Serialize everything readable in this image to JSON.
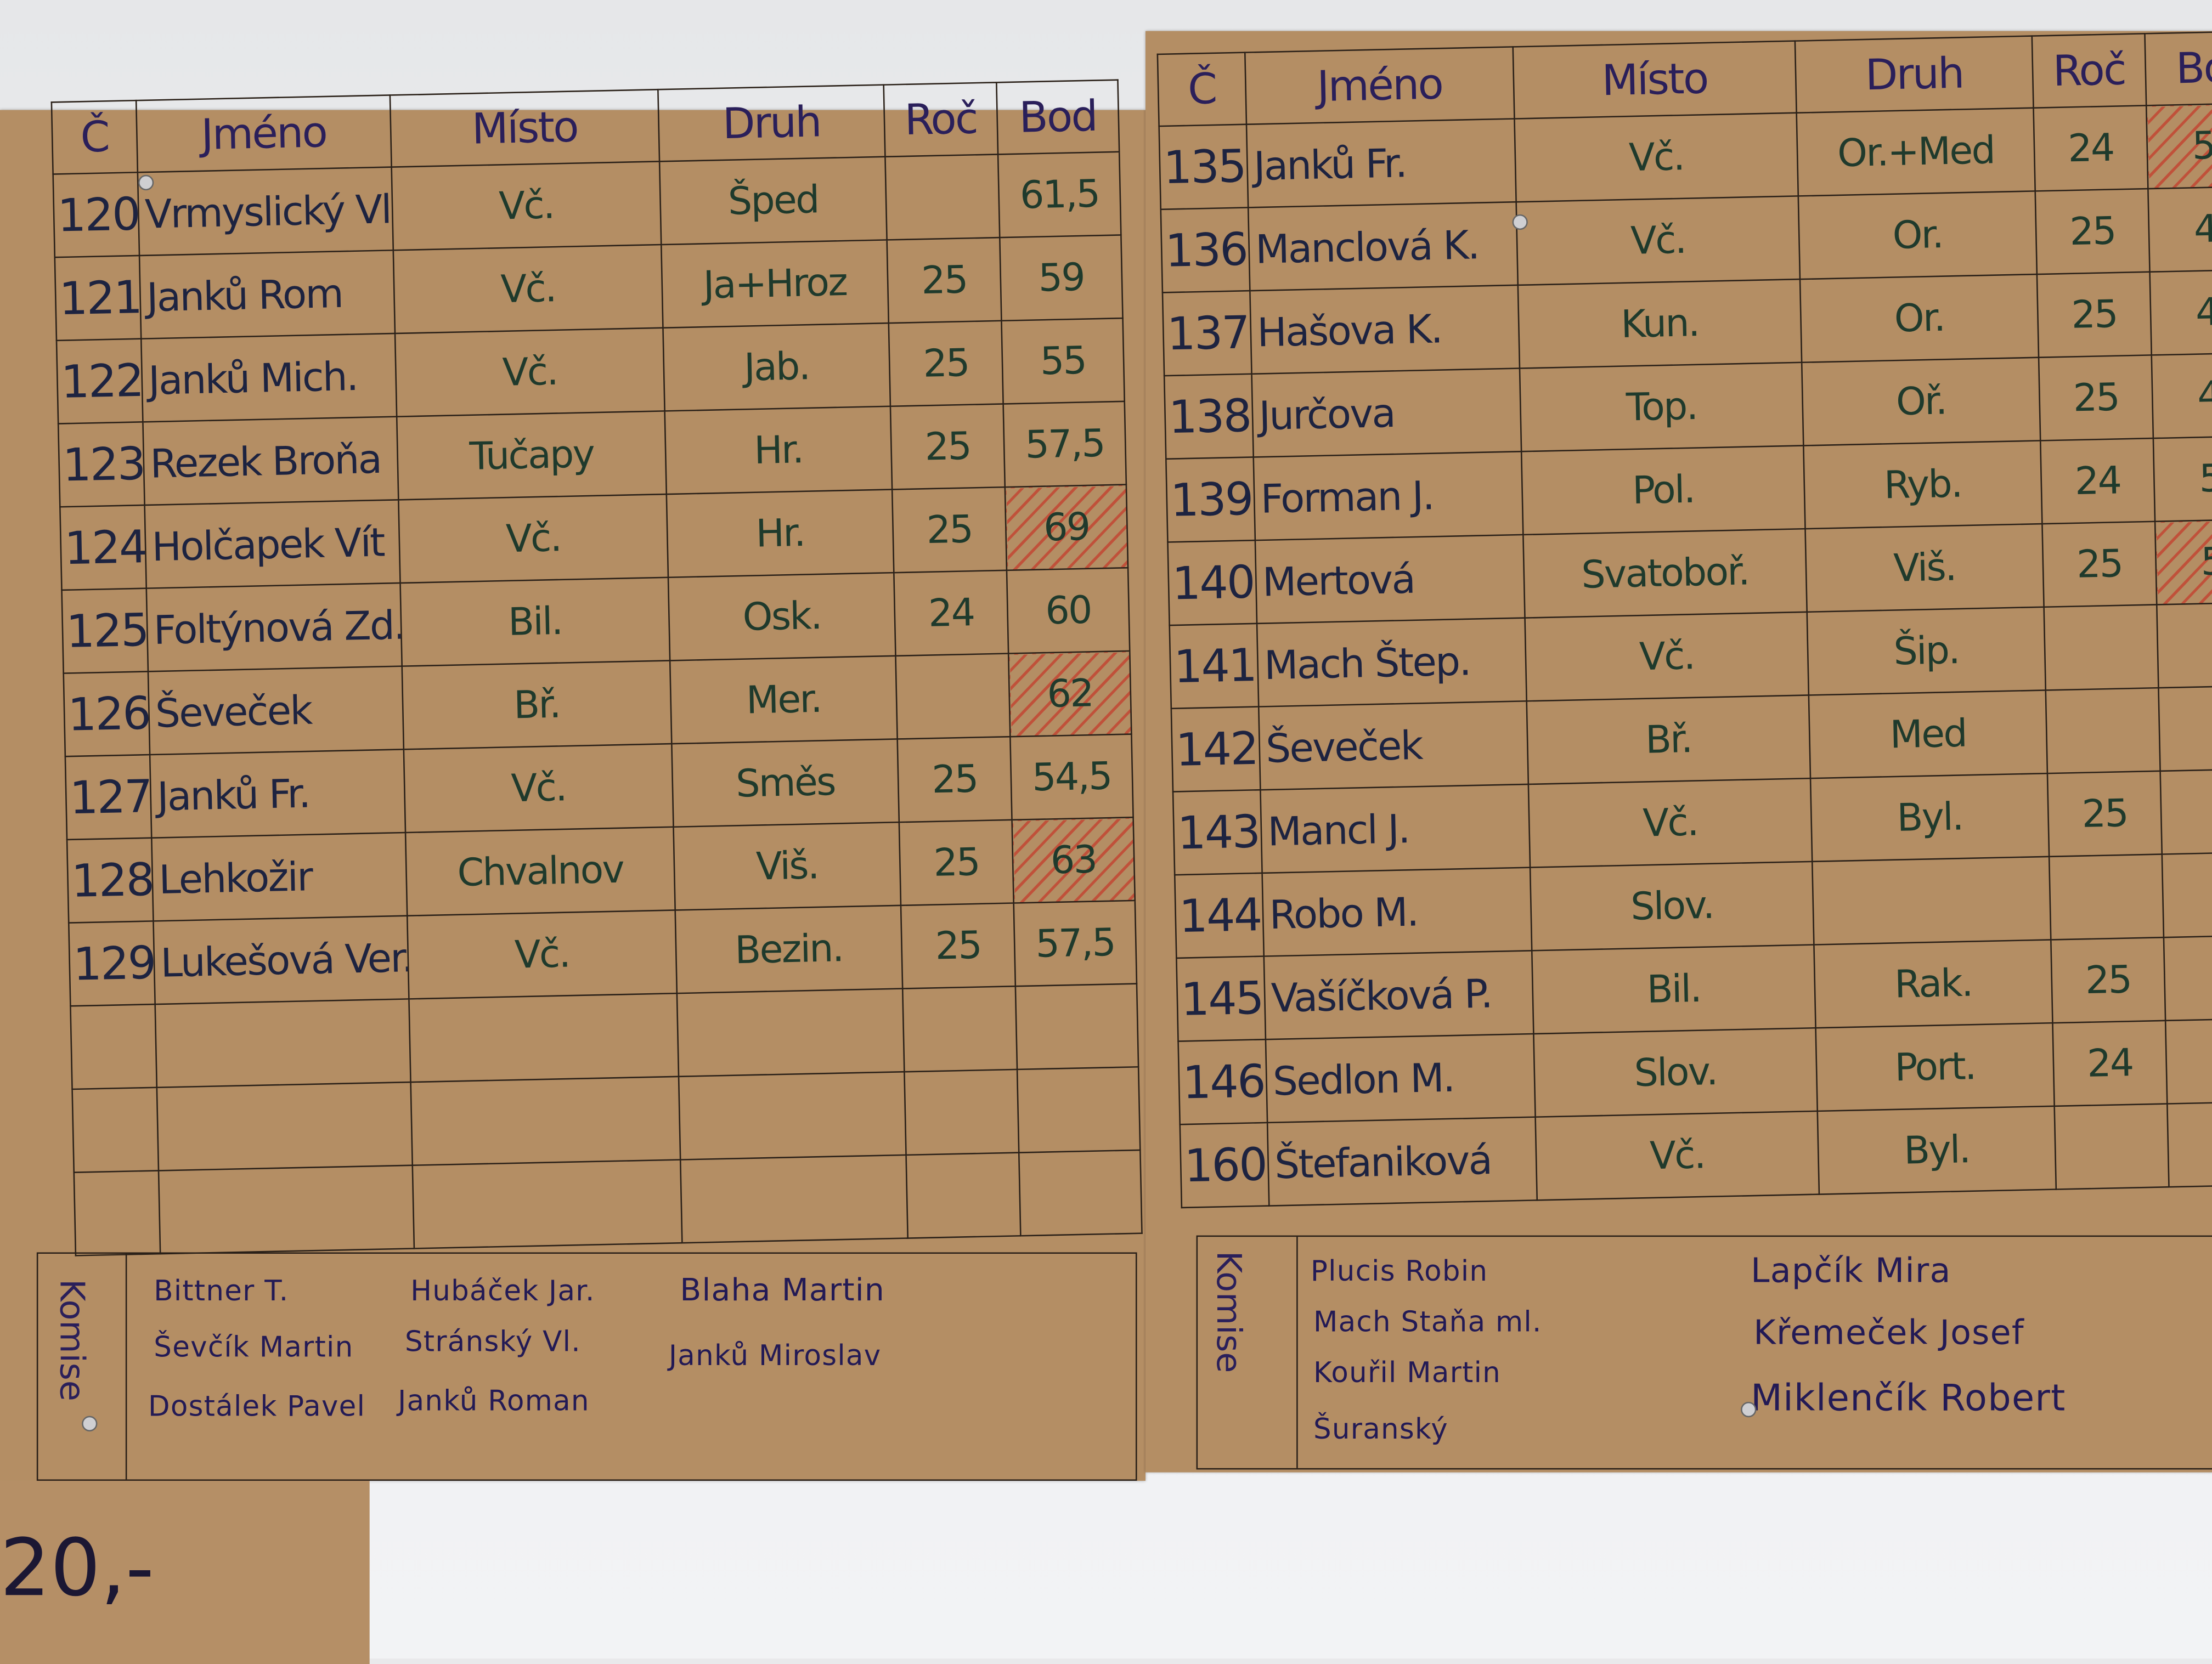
{
  "left_table": {
    "headers": [
      "Č",
      "Jméno",
      "Místo",
      "Druh",
      "Roč",
      "Bod"
    ],
    "rows": [
      {
        "c": "120",
        "jmeno": "Vrmyslický Vl.",
        "misto": "Vč.",
        "druh": "Šped",
        "roc": "",
        "bod": "61,5",
        "marked": false
      },
      {
        "c": "121",
        "jmeno": "Janků Rom",
        "misto": "Vč.",
        "druh": "Ja+Hroz",
        "roc": "25",
        "bod": "59",
        "marked": false
      },
      {
        "c": "122",
        "jmeno": "Janků Mich.",
        "misto": "Vč.",
        "druh": "Jab.",
        "roc": "25",
        "bod": "55",
        "marked": false
      },
      {
        "c": "123",
        "jmeno": "Rezek Broňa",
        "misto": "Tučapy",
        "druh": "Hr.",
        "roc": "25",
        "bod": "57,5",
        "marked": false
      },
      {
        "c": "124",
        "jmeno": "Holčapek Vít",
        "misto": "Vč.",
        "druh": "Hr.",
        "roc": "25",
        "bod": "69",
        "marked": true
      },
      {
        "c": "125",
        "jmeno": "Foltýnová Zd.",
        "misto": "Bil.",
        "druh": "Osk.",
        "roc": "24",
        "bod": "60",
        "marked": false
      },
      {
        "c": "126",
        "jmeno": "Ševeček",
        "misto": "Bř.",
        "druh": "Mer.",
        "roc": "",
        "bod": "62",
        "marked": true
      },
      {
        "c": "127",
        "jmeno": "Janků Fr.",
        "misto": "Vč.",
        "druh": "Směs",
        "roc": "25",
        "bod": "54,5",
        "marked": false
      },
      {
        "c": "128",
        "jmeno": "Lehkožir",
        "misto": "Chvalnov",
        "druh": "Viš.",
        "roc": "25",
        "bod": "63",
        "marked": true
      },
      {
        "c": "129",
        "jmeno": "Lukešová Ver.",
        "misto": "Vč.",
        "druh": "Bezin.",
        "roc": "25",
        "bod": "57,5",
        "marked": false
      },
      {
        "c": "",
        "jmeno": "",
        "misto": "",
        "druh": "",
        "roc": "",
        "bod": "",
        "marked": false
      },
      {
        "c": "",
        "jmeno": "",
        "misto": "",
        "druh": "",
        "roc": "",
        "bod": "",
        "marked": false
      },
      {
        "c": "",
        "jmeno": "",
        "misto": "",
        "druh": "",
        "roc": "",
        "bod": "",
        "marked": false
      }
    ],
    "komise_label": "Komise",
    "komise": [
      "Bittner T.",
      "Hubáček Jar.",
      "Blaha Martin",
      "Ševčík Martin",
      "Stránský Vl.",
      "Janků Miroslav",
      "Dostálek Pavel",
      "Janků Roman"
    ]
  },
  "right_table": {
    "headers": [
      "Č",
      "Jméno",
      "Místo",
      "Druh",
      "Roč",
      "Bo"
    ],
    "rows": [
      {
        "c": "135",
        "jmeno": "Janků Fr.",
        "misto": "Vč.",
        "druh": "Or.+Med",
        "roc": "24",
        "bod": "5",
        "marked": true
      },
      {
        "c": "136",
        "jmeno": "Manclová K.",
        "misto": "Vč.",
        "druh": "Or.",
        "roc": "25",
        "bod": "4",
        "marked": false
      },
      {
        "c": "137",
        "jmeno": "Hašova K.",
        "misto": "Kun.",
        "druh": "Or.",
        "roc": "25",
        "bod": "4",
        "marked": false
      },
      {
        "c": "138",
        "jmeno": "Jurčova",
        "misto": "Top.",
        "druh": "Oř.",
        "roc": "25",
        "bod": "4",
        "marked": false
      },
      {
        "c": "139",
        "jmeno": "Forman J.",
        "misto": "Pol.",
        "druh": "Ryb.",
        "roc": "24",
        "bod": "5",
        "marked": false
      },
      {
        "c": "140",
        "jmeno": "Mertová",
        "misto": "Svatoboř.",
        "druh": "Viš.",
        "roc": "25",
        "bod": "5",
        "marked": true
      },
      {
        "c": "141",
        "jmeno": "Mach Štep.",
        "misto": "Vč.",
        "druh": "Šip.",
        "roc": "",
        "bod": "",
        "marked": false
      },
      {
        "c": "142",
        "jmeno": "Ševeček",
        "misto": "Bř.",
        "druh": "Med",
        "roc": "",
        "bod": "",
        "marked": false
      },
      {
        "c": "143",
        "jmeno": "Mancl J.",
        "misto": "Vč.",
        "druh": "Byl.",
        "roc": "25",
        "bod": "",
        "marked": false
      },
      {
        "c": "144",
        "jmeno": "Robo M.",
        "misto": "Slov.",
        "druh": "",
        "roc": "",
        "bod": "",
        "marked": false
      },
      {
        "c": "145",
        "jmeno": "Vašíčková P.",
        "misto": "Bil.",
        "druh": "Rak.",
        "roc": "25",
        "bod": "",
        "marked": false
      },
      {
        "c": "146",
        "jmeno": "Sedlon M.",
        "misto": "Slov.",
        "druh": "Port.",
        "roc": "24",
        "bod": "",
        "marked": false
      },
      {
        "c": "160",
        "jmeno": "Štefaniková",
        "misto": "Vč.",
        "druh": "Byl.",
        "roc": "",
        "bod": "",
        "marked": false
      }
    ],
    "komise_label": "Komise",
    "komise": [
      "Plucis Robin",
      "Mach Staňa ml.",
      "Kouřil Martin",
      "Šuranský",
      "Lapčík Mira",
      "Křemeček Josef",
      "Miklenčík Robert"
    ]
  },
  "price_card": {
    "text": "20,-"
  },
  "colors": {
    "paper": "#b48e64",
    "ink_blue": "#231a55",
    "ink_green": "#1f3a2c",
    "mark_red": "#c8281e"
  }
}
